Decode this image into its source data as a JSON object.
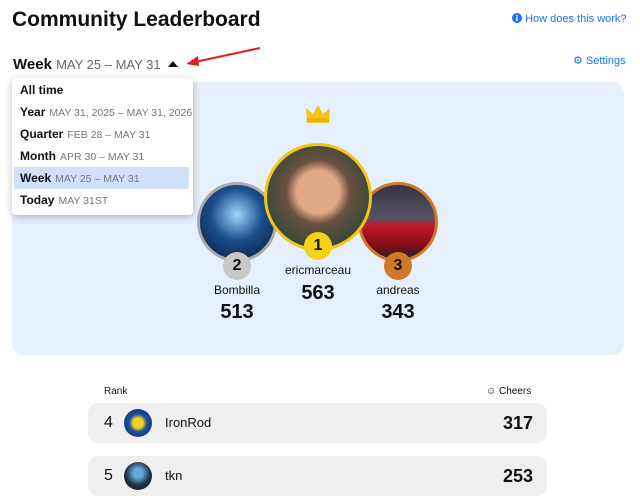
{
  "header": {
    "title": "Community Leaderboard",
    "help_link": "How does this work?"
  },
  "period": {
    "label": "Week",
    "range": "MAY 25 – MAY 31",
    "settings": "Settings"
  },
  "dropdown": {
    "options": [
      {
        "label": "All time"
      },
      {
        "label": "Year",
        "range": "MAY 31, 2025 – MAY 31, 2026"
      },
      {
        "label": "Quarter",
        "range": "FEB 28 – MAY 31"
      },
      {
        "label": "Month",
        "range": "APR 30 – MAY 31"
      },
      {
        "label": "Week",
        "range": "MAY 25 – MAY 31"
      },
      {
        "label": "Today",
        "range": "MAY 31ST"
      }
    ]
  },
  "podium": [
    {
      "rank": 1,
      "name": "ericmarceau",
      "cheers": 563
    },
    {
      "rank": 2,
      "name": "Bombilla",
      "cheers": 513
    },
    {
      "rank": 3,
      "name": "andreas",
      "cheers": 343
    }
  ],
  "table": {
    "headers": {
      "rank": "Rank",
      "cheers": "Cheers"
    },
    "rows": [
      {
        "rank": 4,
        "name": "IronRod",
        "cheers": 317
      },
      {
        "rank": 5,
        "name": "tkn",
        "cheers": 253
      }
    ]
  }
}
